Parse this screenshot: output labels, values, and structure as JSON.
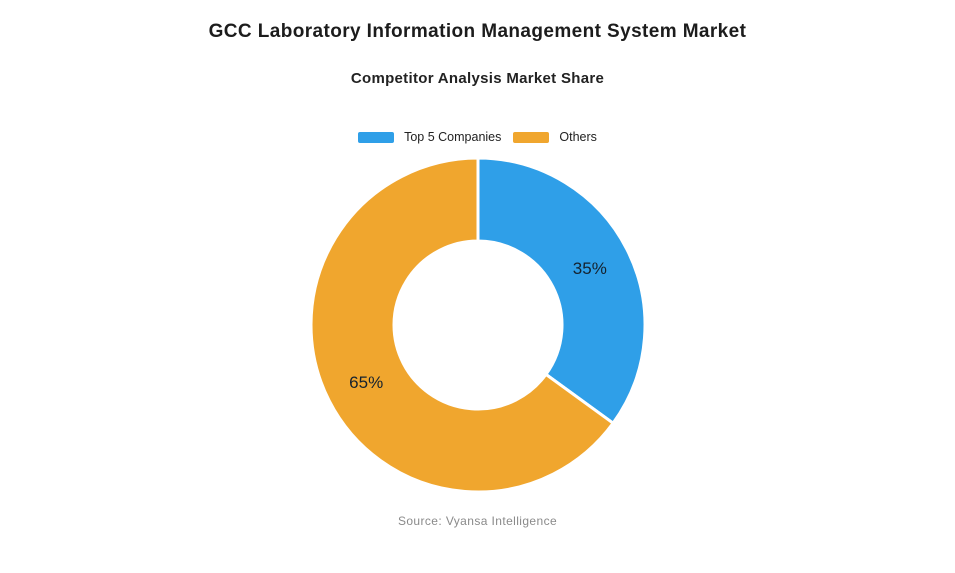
{
  "header": {
    "title": "GCC Laboratory Information Management System Market",
    "subtitle": "Competitor Analysis Market Share"
  },
  "chart_data": {
    "type": "pie",
    "subtype": "donut",
    "title": "Competitor Analysis Market Share",
    "labels": [
      "Top 5 Companies",
      "Others"
    ],
    "values": [
      35,
      65
    ],
    "value_labels": [
      "35%",
      "65%"
    ],
    "colors": [
      "#2F9FE8",
      "#F0A62E"
    ],
    "legend_position": "top",
    "legend_entries": [
      "Top 5 Companies",
      "Others"
    ],
    "start_angle_deg": 0,
    "direction": "clockwise",
    "donut_hole_ratio": 0.5,
    "slice_gap_color": "#FFFFFF",
    "slice_label_color": "#15222e"
  },
  "footer": {
    "source": "Source: Vyansa Intelligence"
  }
}
